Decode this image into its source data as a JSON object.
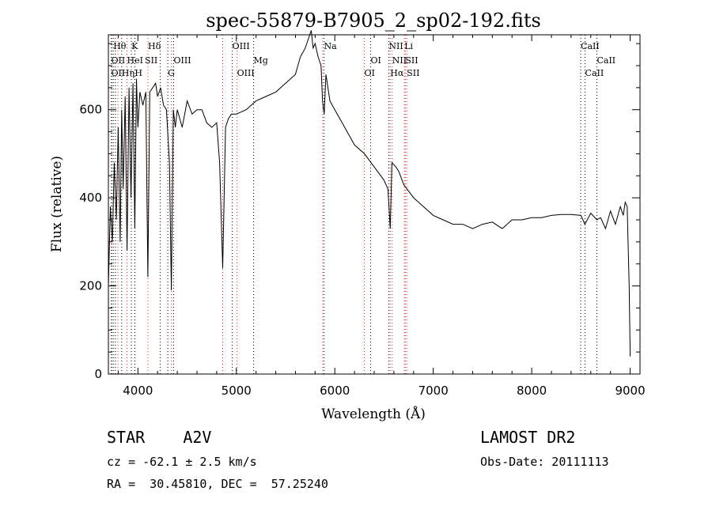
{
  "chart_data": {
    "type": "line",
    "title": "spec-55879-B7905_2_sp02-192.fits",
    "xlabel": "Wavelength (Å)",
    "ylabel": "Flux (relative)",
    "xlim": [
      3700,
      9100
    ],
    "ylim": [
      0,
      770
    ],
    "grid": false,
    "xticks": [
      4000,
      5000,
      6000,
      7000,
      8000,
      9000
    ],
    "yticks": [
      0,
      200,
      400,
      600
    ],
    "series": [
      {
        "x": [
          3700,
          3720,
          3740,
          3760,
          3780,
          3800,
          3820,
          3835,
          3850,
          3870,
          3890,
          3910,
          3930,
          3950,
          3968,
          3985,
          4000,
          4020,
          4050,
          4080,
          4101,
          4120,
          4150,
          4180,
          4200,
          4230,
          4260,
          4290,
          4320,
          4340,
          4360,
          4380,
          4400,
          4450,
          4500,
          4550,
          4600,
          4650,
          4700,
          4750,
          4800,
          4830,
          4861,
          4890,
          4920,
          4950,
          5000,
          5100,
          5200,
          5300,
          5400,
          5500,
          5600,
          5650,
          5700,
          5730,
          5760,
          5780,
          5800,
          5830,
          5860,
          5875,
          5892,
          5910,
          5950,
          6000,
          6100,
          6200,
          6300,
          6400,
          6500,
          6540,
          6563,
          6580,
          6620,
          6650,
          6700,
          6800,
          6900,
          7000,
          7100,
          7200,
          7300,
          7400,
          7500,
          7600,
          7700,
          7750,
          7800,
          7900,
          8000,
          8100,
          8200,
          8300,
          8400,
          8500,
          8540,
          8600,
          8662,
          8700,
          8750,
          8800,
          8850,
          8900,
          8930,
          8950,
          8970,
          8990,
          9000
        ],
        "values": [
          200,
          380,
          300,
          480,
          350,
          560,
          300,
          600,
          420,
          630,
          280,
          650,
          400,
          660,
          330,
          670,
          560,
          640,
          610,
          640,
          220,
          640,
          650,
          660,
          630,
          650,
          610,
          600,
          480,
          190,
          600,
          560,
          600,
          560,
          620,
          590,
          600,
          600,
          570,
          560,
          570,
          480,
          240,
          560,
          580,
          590,
          590,
          600,
          620,
          630,
          640,
          660,
          680,
          720,
          740,
          760,
          780,
          740,
          750,
          720,
          700,
          620,
          590,
          680,
          620,
          600,
          560,
          520,
          500,
          470,
          440,
          420,
          330,
          480,
          470,
          460,
          430,
          400,
          380,
          360,
          350,
          340,
          340,
          330,
          340,
          345,
          330,
          340,
          350,
          350,
          355,
          355,
          360,
          362,
          362,
          360,
          340,
          365,
          350,
          355,
          330,
          370,
          340,
          380,
          360,
          390,
          380,
          200,
          40
        ]
      }
    ],
    "line_markers": {
      "red": [
        3728,
        3797,
        3889,
        3970,
        4102,
        4341,
        4861,
        5007,
        5876,
        6300,
        6563,
        6583,
        6707,
        6716,
        6731
      ],
      "black": [
        3734,
        3750,
        3771,
        3835,
        3933,
        3968,
        4227,
        4304,
        4363,
        4959,
        5175,
        5890,
        6364,
        6548,
        8498,
        8542,
        8662
      ]
    },
    "annotations": [
      {
        "text": "Hθ",
        "x": 3750,
        "row": 0
      },
      {
        "text": "K",
        "x": 3934,
        "row": 0
      },
      {
        "text": "Hδ",
        "x": 4102,
        "row": 0
      },
      {
        "text": "OIII",
        "x": 4959,
        "row": 0
      },
      {
        "text": "Na",
        "x": 5890,
        "row": 0
      },
      {
        "text": "NII",
        "x": 6548,
        "row": 0
      },
      {
        "text": "Li",
        "x": 6707,
        "row": 0
      },
      {
        "text": "CaII",
        "x": 8498,
        "row": 0
      },
      {
        "text": "OII",
        "x": 3728,
        "row": 1
      },
      {
        "text": "HeI",
        "x": 3889,
        "row": 1
      },
      {
        "text": "SII",
        "x": 4070,
        "row": 1
      },
      {
        "text": "OIII",
        "x": 4363,
        "row": 1
      },
      {
        "text": "Mg",
        "x": 5175,
        "row": 1
      },
      {
        "text": "OI",
        "x": 6364,
        "row": 1
      },
      {
        "text": "NII",
        "x": 6583,
        "row": 1
      },
      {
        "text": "SII",
        "x": 6716,
        "row": 1
      },
      {
        "text": "CaII",
        "x": 8662,
        "row": 1
      },
      {
        "text": "OII",
        "x": 3728,
        "row": 2
      },
      {
        "text": "Hη",
        "x": 3835,
        "row": 2
      },
      {
        "text": "H",
        "x": 3968,
        "row": 2
      },
      {
        "text": "G",
        "x": 4304,
        "row": 2
      },
      {
        "text": "OIII",
        "x": 5007,
        "row": 2
      },
      {
        "text": "OI",
        "x": 6300,
        "row": 2
      },
      {
        "text": "Hα",
        "x": 6563,
        "row": 2
      },
      {
        "text": "SII",
        "x": 6731,
        "row": 2
      },
      {
        "text": "CaII",
        "x": 8542,
        "row": 2
      }
    ]
  },
  "info": {
    "class_text": "STAR    A2V",
    "survey": "LAMOST DR2",
    "cz": "cz = -62.1 ± 2.5 km/s",
    "obs_date": "Obs-Date: 20111113",
    "coords": "RA =  30.45810, DEC =  57.25240"
  }
}
